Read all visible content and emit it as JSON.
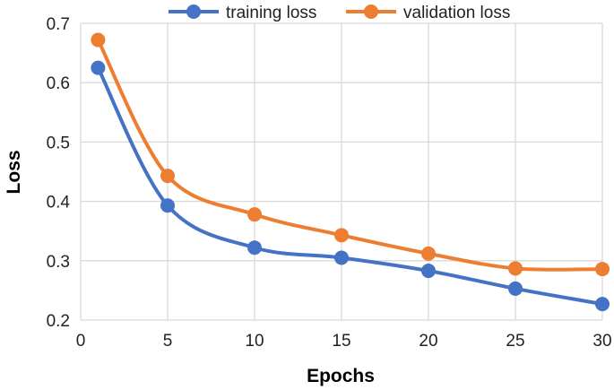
{
  "chart_data": {
    "type": "line",
    "title": "",
    "xlabel": "Epochs",
    "ylabel": "Loss",
    "xlim": [
      0,
      30
    ],
    "ylim": [
      0.2,
      0.7
    ],
    "x_ticks": [
      0,
      5,
      10,
      15,
      20,
      25,
      30
    ],
    "y_ticks": [
      0.2,
      0.3,
      0.4,
      0.5,
      0.6,
      0.7
    ],
    "y_tick_labels": [
      "0.2",
      "0.3",
      "0.4",
      "0.5",
      "0.6",
      "0.7"
    ],
    "grid": true,
    "legend_position": "top-center",
    "x": [
      1,
      5,
      10,
      15,
      20,
      25,
      30
    ],
    "series": [
      {
        "name": "training loss",
        "color": "#4472C4",
        "values": [
          0.625,
          0.393,
          0.322,
          0.305,
          0.283,
          0.253,
          0.227
        ]
      },
      {
        "name": "validation loss",
        "color": "#ED7D31",
        "values": [
          0.672,
          0.443,
          0.378,
          0.343,
          0.312,
          0.287,
          0.286
        ]
      }
    ]
  }
}
